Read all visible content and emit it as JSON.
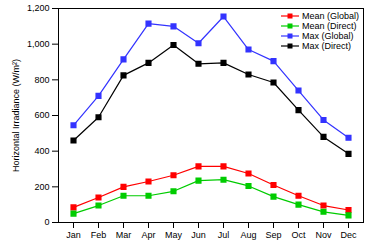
{
  "chart_data": {
    "type": "line",
    "y_label": "Horizontal Irradiance (W/m²)",
    "categories": [
      "Jan",
      "Feb",
      "Mar",
      "Apr",
      "May",
      "Jun",
      "Jul",
      "Aug",
      "Sep",
      "Oct",
      "Nov",
      "Dec"
    ],
    "series": [
      {
        "name": "Mean (Global)",
        "color": "#ff0000",
        "marker": "square",
        "line_style": "solid",
        "values": [
          85,
          140,
          200,
          230,
          265,
          315,
          315,
          275,
          210,
          150,
          95,
          70
        ]
      },
      {
        "name": "Mean (Direct)",
        "color": "#00cc00",
        "marker": "square",
        "line_style": "solid",
        "values": [
          50,
          95,
          150,
          150,
          175,
          235,
          240,
          205,
          145,
          100,
          60,
          40
        ]
      },
      {
        "name": "Max (Global)",
        "color": "#3333ff",
        "marker": "square",
        "line_style": "solid",
        "values": [
          545,
          710,
          915,
          1115,
          1100,
          1005,
          1155,
          970,
          905,
          740,
          575,
          475
        ]
      },
      {
        "name": "Max (Direct)",
        "color": "#000000",
        "marker": "square",
        "line_style": "solid",
        "values": [
          460,
          590,
          825,
          895,
          995,
          890,
          895,
          830,
          785,
          630,
          480,
          385
        ]
      }
    ],
    "ylim": [
      0,
      1200
    ],
    "yticks": [
      0,
      200,
      400,
      600,
      800,
      1000,
      1200
    ],
    "legend": "top-right"
  }
}
